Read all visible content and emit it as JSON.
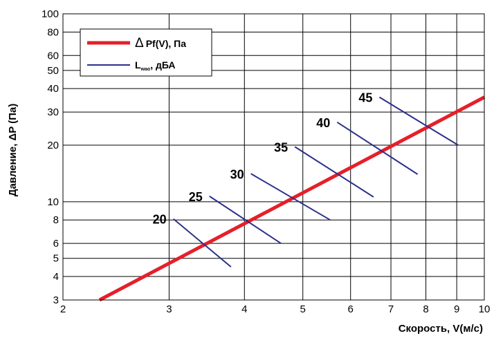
{
  "chart_data": {
    "type": "line",
    "x_scale": "log",
    "y_scale": "log",
    "xlim": [
      2,
      10
    ],
    "ylim": [
      3,
      100
    ],
    "grid": true,
    "legend_placement": "top-left",
    "xlabel": "Скорость, V(м/с)",
    "ylabel": "Давление, ΔP (Па)",
    "x_ticks": [
      "2",
      "3",
      "4",
      "5",
      "6",
      "7",
      "8",
      "9",
      "10"
    ],
    "x_tick_values": [
      2,
      3,
      4,
      5,
      6,
      7,
      8,
      9,
      10
    ],
    "y_ticks": [
      "3",
      "4",
      "5",
      "6",
      "8",
      "10",
      "20",
      "30",
      "40",
      "50",
      "60",
      "80",
      "100"
    ],
    "y_tick_values": [
      3,
      4,
      5,
      6,
      8,
      10,
      20,
      30,
      40,
      50,
      60,
      80,
      100
    ],
    "legend": [
      {
        "symbol": "Δ",
        "text": "Pf(V), Па",
        "color": "#e4202a"
      },
      {
        "main": "L",
        "sub": "wao",
        "rest": ", дБА",
        "color": "#2b2f8a"
      }
    ],
    "series": [
      {
        "name": "ΔPf(V), Па",
        "color": "#e4202a",
        "x": [
          2.3,
          10
        ],
        "y": [
          3.0,
          36
        ]
      }
    ],
    "noise_lines": {
      "color": "#2b2f8a",
      "items": [
        {
          "label": "20",
          "x": [
            3.05,
            3.8
          ],
          "y": [
            8.1,
            4.5
          ]
        },
        {
          "label": "25",
          "x": [
            3.5,
            4.6
          ],
          "y": [
            10.7,
            6.0
          ]
        },
        {
          "label": "30",
          "x": [
            4.1,
            5.55
          ],
          "y": [
            14.1,
            8.0
          ]
        },
        {
          "label": "35",
          "x": [
            4.85,
            6.55
          ],
          "y": [
            19.6,
            10.6
          ]
        },
        {
          "label": "40",
          "x": [
            5.7,
            7.75
          ],
          "y": [
            26.5,
            14.0
          ]
        },
        {
          "label": "45",
          "x": [
            6.7,
            9.05
          ],
          "y": [
            36.0,
            20.0
          ]
        }
      ]
    }
  }
}
